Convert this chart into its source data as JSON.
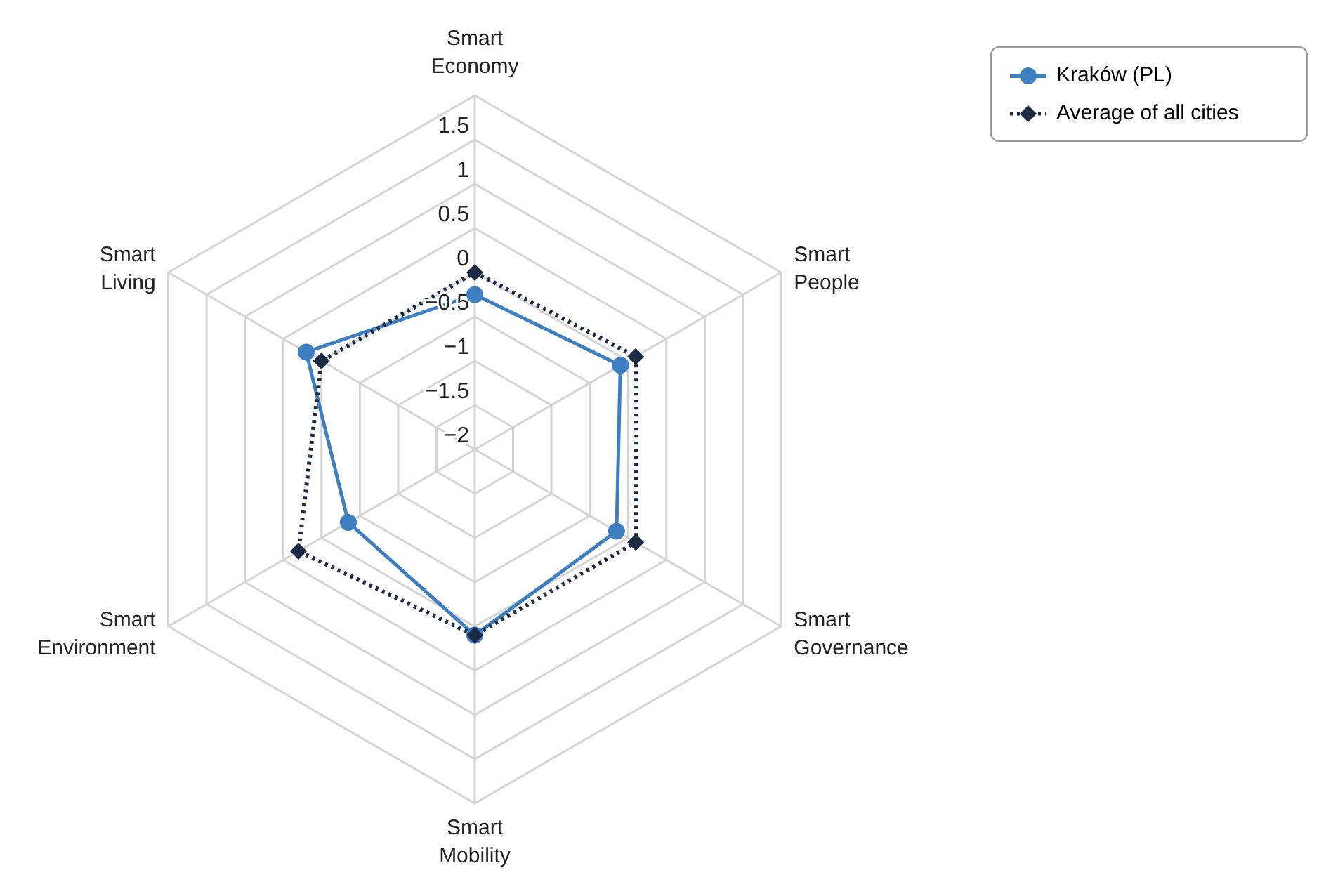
{
  "chart_data": {
    "type": "radar",
    "categories": [
      "Smart Economy",
      "Smart People",
      "Smart Governance",
      "Smart Mobility",
      "Smart Environment",
      "Smart Living"
    ],
    "series": [
      {
        "name": "Kraków (PL)",
        "color": "#3d7fc1",
        "values": [
          -0.25,
          -0.1,
          -0.15,
          0.1,
          -0.35,
          0.2
        ],
        "marker": "circle",
        "line_style": "solid"
      },
      {
        "name": "Average of all cities",
        "color": "#1c2a44",
        "values": [
          0,
          0.1,
          0.1,
          0.1,
          0.3,
          0
        ],
        "marker": "diamond",
        "line_style": "dotted"
      }
    ],
    "ylim": [
      -2,
      2
    ],
    "yticks": [
      -2,
      -1.5,
      -1,
      -0.5,
      0,
      0.5,
      1,
      1.5
    ],
    "grid": true,
    "legend": "top right"
  }
}
